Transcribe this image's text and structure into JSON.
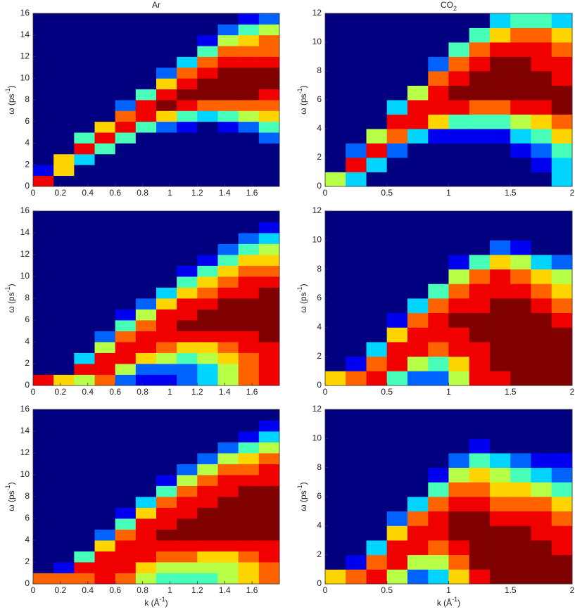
{
  "chart_data": [
    {
      "type": "heatmap",
      "title": [
        "Ar"
      ],
      "ylabel": [
        "ω (ps",
        "-1",
        ")"
      ],
      "colormap": "jet",
      "zlim": [
        0,
        9
      ],
      "xlim": [
        0,
        1.8
      ],
      "ylim": [
        0,
        16
      ],
      "xticks": [
        0,
        0.2,
        0.4,
        0.6,
        0.8,
        1,
        1.2,
        1.4,
        1.6
      ],
      "yticks": [
        0,
        2,
        4,
        6,
        8,
        10,
        12,
        14,
        16
      ],
      "x": [
        0.075,
        0.225,
        0.375,
        0.525,
        0.675,
        0.825,
        0.975,
        1.125,
        1.275,
        1.425,
        1.575,
        1.725
      ],
      "z": [
        [
          8,
          1,
          0,
          0,
          0,
          0,
          0,
          0,
          0,
          0,
          0,
          0,
          0,
          0,
          0,
          0
        ],
        [
          0,
          6,
          6,
          0,
          0,
          0,
          0,
          0,
          0,
          0,
          0,
          0,
          0,
          0,
          0,
          0
        ],
        [
          0,
          0,
          3,
          8,
          4,
          0,
          0,
          0,
          0,
          0,
          0,
          0,
          0,
          0,
          0,
          0
        ],
        [
          0,
          0,
          0,
          4,
          8,
          6,
          0,
          0,
          0,
          0,
          0,
          0,
          0,
          0,
          0,
          0
        ],
        [
          0,
          0,
          0,
          0,
          4,
          8,
          7,
          2,
          0,
          0,
          0,
          0,
          0,
          0,
          0,
          0
        ],
        [
          0,
          0,
          0,
          0,
          0,
          4,
          8,
          8,
          4,
          0,
          0,
          0,
          0,
          0,
          0,
          0
        ],
        [
          0,
          0,
          0,
          0,
          0,
          2,
          6,
          9,
          8,
          6,
          2,
          0,
          0,
          0,
          0,
          0
        ],
        [
          0,
          0,
          0,
          0,
          0,
          1,
          4,
          8,
          9,
          8,
          7,
          3,
          0,
          0,
          0,
          0
        ],
        [
          0,
          0,
          0,
          0,
          0,
          0,
          3,
          7,
          9,
          9,
          8,
          7,
          4,
          1,
          0,
          0
        ],
        [
          0,
          0,
          0,
          0,
          0,
          1,
          4,
          7,
          9,
          9,
          9,
          8,
          7,
          5,
          2,
          0
        ],
        [
          0,
          0,
          0,
          0,
          0,
          2,
          5,
          7,
          9,
          9,
          9,
          8,
          7,
          6,
          4,
          1
        ],
        [
          0,
          0,
          0,
          0,
          2,
          4,
          6,
          7,
          8,
          9,
          9,
          8,
          7,
          7,
          5,
          2
        ]
      ]
    },
    {
      "type": "heatmap",
      "title": [
        "CO",
        "2"
      ],
      "ylabel": [
        "ω (ps",
        "-1",
        ")"
      ],
      "colormap": "jet",
      "zlim": [
        0,
        9
      ],
      "xlim": [
        0,
        2
      ],
      "ylim": [
        0,
        12
      ],
      "xticks": [
        0,
        0.5,
        1,
        1.5,
        2
      ],
      "yticks": [
        0,
        2,
        4,
        6,
        8,
        10,
        12
      ],
      "x": [
        0.083,
        0.25,
        0.417,
        0.583,
        0.75,
        0.917,
        1.083,
        1.25,
        1.417,
        1.583,
        1.75,
        1.917
      ],
      "z": [
        [
          5,
          0,
          0,
          0,
          0,
          0,
          0,
          0,
          0,
          0,
          0,
          0
        ],
        [
          3,
          8,
          2,
          0,
          0,
          0,
          0,
          0,
          0,
          0,
          0,
          0
        ],
        [
          0,
          3,
          8,
          5,
          0,
          0,
          0,
          0,
          0,
          0,
          0,
          0
        ],
        [
          0,
          0,
          2,
          7,
          8,
          3,
          0,
          0,
          0,
          0,
          0,
          0
        ],
        [
          0,
          0,
          0,
          3,
          8,
          8,
          5,
          0,
          0,
          0,
          0,
          0
        ],
        [
          0,
          0,
          0,
          1,
          6,
          8,
          8,
          7,
          2,
          0,
          0,
          0
        ],
        [
          0,
          0,
          0,
          1,
          4,
          8,
          9,
          8,
          7,
          4,
          0,
          0
        ],
        [
          0,
          0,
          0,
          1,
          4,
          7,
          9,
          9,
          8,
          7,
          4,
          0
        ],
        [
          0,
          0,
          0,
          1,
          4,
          7,
          9,
          9,
          9,
          8,
          6,
          3
        ],
        [
          0,
          0,
          1,
          3,
          5,
          8,
          9,
          9,
          9,
          8,
          7,
          4
        ],
        [
          0,
          1,
          2,
          4,
          6,
          8,
          9,
          9,
          8,
          8,
          7,
          4
        ],
        [
          3,
          3,
          4,
          6,
          7,
          9,
          9,
          8,
          8,
          7,
          6,
          3
        ]
      ]
    },
    {
      "type": "heatmap",
      "ylabel": [
        "ω (ps",
        "-1",
        ")"
      ],
      "colormap": "jet",
      "zlim": [
        0,
        9
      ],
      "xlim": [
        0,
        1.8
      ],
      "ylim": [
        0,
        16
      ],
      "xticks": [
        0,
        0.2,
        0.4,
        0.6,
        0.8,
        1,
        1.2,
        1.4,
        1.6
      ],
      "yticks": [
        0,
        2,
        4,
        6,
        8,
        10,
        12,
        14,
        16
      ],
      "x": [
        0.075,
        0.225,
        0.375,
        0.525,
        0.675,
        0.825,
        0.975,
        1.125,
        1.275,
        1.425,
        1.575,
        1.725
      ],
      "z": [
        [
          8,
          0,
          0,
          0,
          0,
          0,
          0,
          0,
          0,
          0,
          0,
          0,
          0,
          0,
          0,
          0
        ],
        [
          6,
          0,
          0,
          0,
          0,
          0,
          0,
          0,
          0,
          0,
          0,
          0,
          0,
          0,
          0,
          0
        ],
        [
          5,
          8,
          3,
          0,
          0,
          0,
          0,
          0,
          0,
          0,
          0,
          0,
          0,
          0,
          0,
          0
        ],
        [
          7,
          8,
          8,
          5,
          2,
          0,
          0,
          0,
          0,
          0,
          0,
          0,
          0,
          0,
          0,
          0
        ],
        [
          2,
          5,
          8,
          8,
          7,
          4,
          1,
          0,
          0,
          0,
          0,
          0,
          0,
          0,
          0,
          0
        ],
        [
          1,
          2,
          6,
          8,
          8,
          7,
          5,
          2,
          0,
          0,
          0,
          0,
          0,
          0,
          0,
          0
        ],
        [
          1,
          2,
          5,
          7,
          8,
          8,
          8,
          6,
          3,
          0,
          0,
          0,
          0,
          0,
          0,
          0
        ],
        [
          2,
          2,
          4,
          6,
          8,
          9,
          8,
          8,
          6,
          4,
          1,
          0,
          0,
          0,
          0,
          0
        ],
        [
          3,
          3,
          5,
          6,
          8,
          9,
          9,
          8,
          7,
          6,
          4,
          1,
          0,
          0,
          0,
          0
        ],
        [
          5,
          5,
          6,
          7,
          8,
          9,
          9,
          9,
          8,
          7,
          6,
          4,
          2,
          0,
          0,
          0
        ],
        [
          7,
          7,
          7,
          8,
          8,
          9,
          9,
          9,
          8,
          8,
          7,
          6,
          4,
          2,
          0,
          0
        ],
        [
          8,
          8,
          8,
          8,
          9,
          9,
          9,
          9,
          9,
          8,
          7,
          6,
          5,
          3,
          1,
          0
        ]
      ]
    },
    {
      "type": "heatmap",
      "ylabel": [
        "ω (ps",
        "-1",
        ")"
      ],
      "colormap": "jet",
      "zlim": [
        0,
        9
      ],
      "xlim": [
        0,
        2
      ],
      "ylim": [
        0,
        12
      ],
      "xticks": [
        0,
        0.5,
        1,
        1.5,
        2
      ],
      "yticks": [
        0,
        2,
        4,
        6,
        8,
        10,
        12
      ],
      "x": [
        0.083,
        0.25,
        0.417,
        0.583,
        0.75,
        0.917,
        1.083,
        1.25,
        1.417,
        1.583,
        1.75,
        1.917
      ],
      "z": [
        [
          6,
          0,
          0,
          0,
          0,
          0,
          0,
          0,
          0,
          0,
          0,
          0
        ],
        [
          7,
          1,
          0,
          0,
          0,
          0,
          0,
          0,
          0,
          0,
          0,
          0
        ],
        [
          8,
          7,
          3,
          0,
          0,
          0,
          0,
          0,
          0,
          0,
          0,
          0
        ],
        [
          4,
          8,
          8,
          6,
          1,
          0,
          0,
          0,
          0,
          0,
          0,
          0
        ],
        [
          2,
          5,
          8,
          8,
          7,
          3,
          0,
          0,
          0,
          0,
          0,
          0
        ],
        [
          2,
          4,
          7,
          8,
          8,
          7,
          4,
          0,
          0,
          0,
          0,
          0
        ],
        [
          5,
          6,
          8,
          8,
          9,
          8,
          7,
          5,
          1,
          0,
          0,
          0
        ],
        [
          8,
          8,
          8,
          9,
          9,
          8,
          8,
          7,
          4,
          0,
          0,
          0
        ],
        [
          8,
          9,
          9,
          9,
          9,
          9,
          8,
          8,
          6,
          2,
          0,
          0
        ],
        [
          9,
          9,
          9,
          9,
          9,
          9,
          8,
          7,
          5,
          1,
          0,
          0
        ],
        [
          9,
          9,
          9,
          9,
          9,
          8,
          7,
          6,
          3,
          0,
          0,
          0
        ],
        [
          9,
          9,
          9,
          9,
          8,
          7,
          6,
          5,
          2,
          0,
          0,
          0
        ]
      ]
    },
    {
      "type": "heatmap",
      "xlabel": [
        "k (Å",
        "-1",
        ")"
      ],
      "ylabel": [
        "ω (ps",
        "-1",
        ")"
      ],
      "colormap": "jet",
      "zlim": [
        0,
        9
      ],
      "xlim": [
        0,
        1.8
      ],
      "ylim": [
        0,
        16
      ],
      "xticks": [
        0,
        0.2,
        0.4,
        0.6,
        0.8,
        1,
        1.2,
        1.4,
        1.6
      ],
      "yticks": [
        0,
        2,
        4,
        6,
        8,
        10,
        12,
        14,
        16
      ],
      "x": [
        0.075,
        0.225,
        0.375,
        0.525,
        0.675,
        0.825,
        0.975,
        1.125,
        1.275,
        1.425,
        1.575,
        1.725
      ],
      "z": [
        [
          7,
          0,
          0,
          0,
          0,
          0,
          0,
          0,
          0,
          0,
          0,
          0,
          0,
          0,
          0,
          0
        ],
        [
          7,
          1,
          0,
          0,
          0,
          0,
          0,
          0,
          0,
          0,
          0,
          0,
          0,
          0,
          0,
          0
        ],
        [
          7,
          8,
          4,
          0,
          0,
          0,
          0,
          0,
          0,
          0,
          0,
          0,
          0,
          0,
          0,
          0
        ],
        [
          8,
          8,
          8,
          6,
          2,
          0,
          0,
          0,
          0,
          0,
          0,
          0,
          0,
          0,
          0,
          0
        ],
        [
          7,
          8,
          8,
          8,
          7,
          4,
          1,
          0,
          0,
          0,
          0,
          0,
          0,
          0,
          0,
          0
        ],
        [
          5,
          6,
          8,
          8,
          8,
          8,
          6,
          3,
          0,
          0,
          0,
          0,
          0,
          0,
          0,
          0
        ],
        [
          4,
          5,
          7,
          8,
          9,
          8,
          8,
          7,
          4,
          1,
          0,
          0,
          0,
          0,
          0,
          0
        ],
        [
          4,
          5,
          7,
          8,
          9,
          9,
          8,
          8,
          7,
          5,
          2,
          0,
          0,
          0,
          0,
          0
        ],
        [
          4,
          5,
          6,
          8,
          9,
          9,
          9,
          8,
          8,
          7,
          5,
          2,
          0,
          0,
          0,
          0
        ],
        [
          5,
          5,
          6,
          8,
          9,
          9,
          9,
          9,
          8,
          8,
          7,
          5,
          2,
          0,
          0,
          0
        ],
        [
          6,
          6,
          7,
          8,
          9,
          9,
          9,
          9,
          9,
          8,
          7,
          6,
          4,
          1,
          0,
          0
        ],
        [
          7,
          7,
          8,
          8,
          9,
          9,
          9,
          9,
          9,
          8,
          8,
          7,
          5,
          3,
          1,
          0
        ]
      ]
    },
    {
      "type": "heatmap",
      "xlabel": [
        "k (Å",
        "-1",
        ")"
      ],
      "ylabel": [
        "ω (ps",
        "-1",
        ")"
      ],
      "colormap": "jet",
      "zlim": [
        0,
        9
      ],
      "xlim": [
        0,
        2
      ],
      "ylim": [
        0,
        12
      ],
      "xticks": [
        0,
        0.5,
        1,
        1.5,
        2
      ],
      "yticks": [
        0,
        2,
        4,
        6,
        8,
        10,
        12
      ],
      "x": [
        0.083,
        0.25,
        0.417,
        0.583,
        0.75,
        0.917,
        1.083,
        1.25,
        1.417,
        1.583,
        1.75,
        1.917
      ],
      "z": [
        [
          6,
          0,
          0,
          0,
          0,
          0,
          0,
          0,
          0,
          0,
          0,
          0
        ],
        [
          7,
          1,
          0,
          0,
          0,
          0,
          0,
          0,
          0,
          0,
          0,
          0
        ],
        [
          8,
          7,
          3,
          0,
          0,
          0,
          0,
          0,
          0,
          0,
          0,
          0
        ],
        [
          5,
          8,
          8,
          6,
          2,
          0,
          0,
          0,
          0,
          0,
          0,
          0
        ],
        [
          2,
          5,
          8,
          8,
          7,
          3,
          0,
          0,
          0,
          0,
          0,
          0
        ],
        [
          3,
          5,
          7,
          8,
          8,
          7,
          4,
          1,
          0,
          0,
          0,
          0
        ],
        [
          6,
          7,
          8,
          9,
          9,
          8,
          7,
          5,
          2,
          0,
          0,
          0
        ],
        [
          8,
          9,
          9,
          9,
          9,
          8,
          7,
          6,
          4,
          1,
          0,
          0
        ],
        [
          9,
          9,
          9,
          9,
          8,
          7,
          6,
          5,
          3,
          0,
          0,
          0
        ],
        [
          9,
          9,
          9,
          9,
          8,
          7,
          6,
          4,
          2,
          0,
          0,
          0
        ],
        [
          9,
          9,
          9,
          8,
          8,
          7,
          5,
          3,
          1,
          0,
          0,
          0
        ],
        [
          9,
          9,
          8,
          8,
          7,
          6,
          4,
          2,
          1,
          0,
          0,
          0
        ]
      ]
    }
  ]
}
